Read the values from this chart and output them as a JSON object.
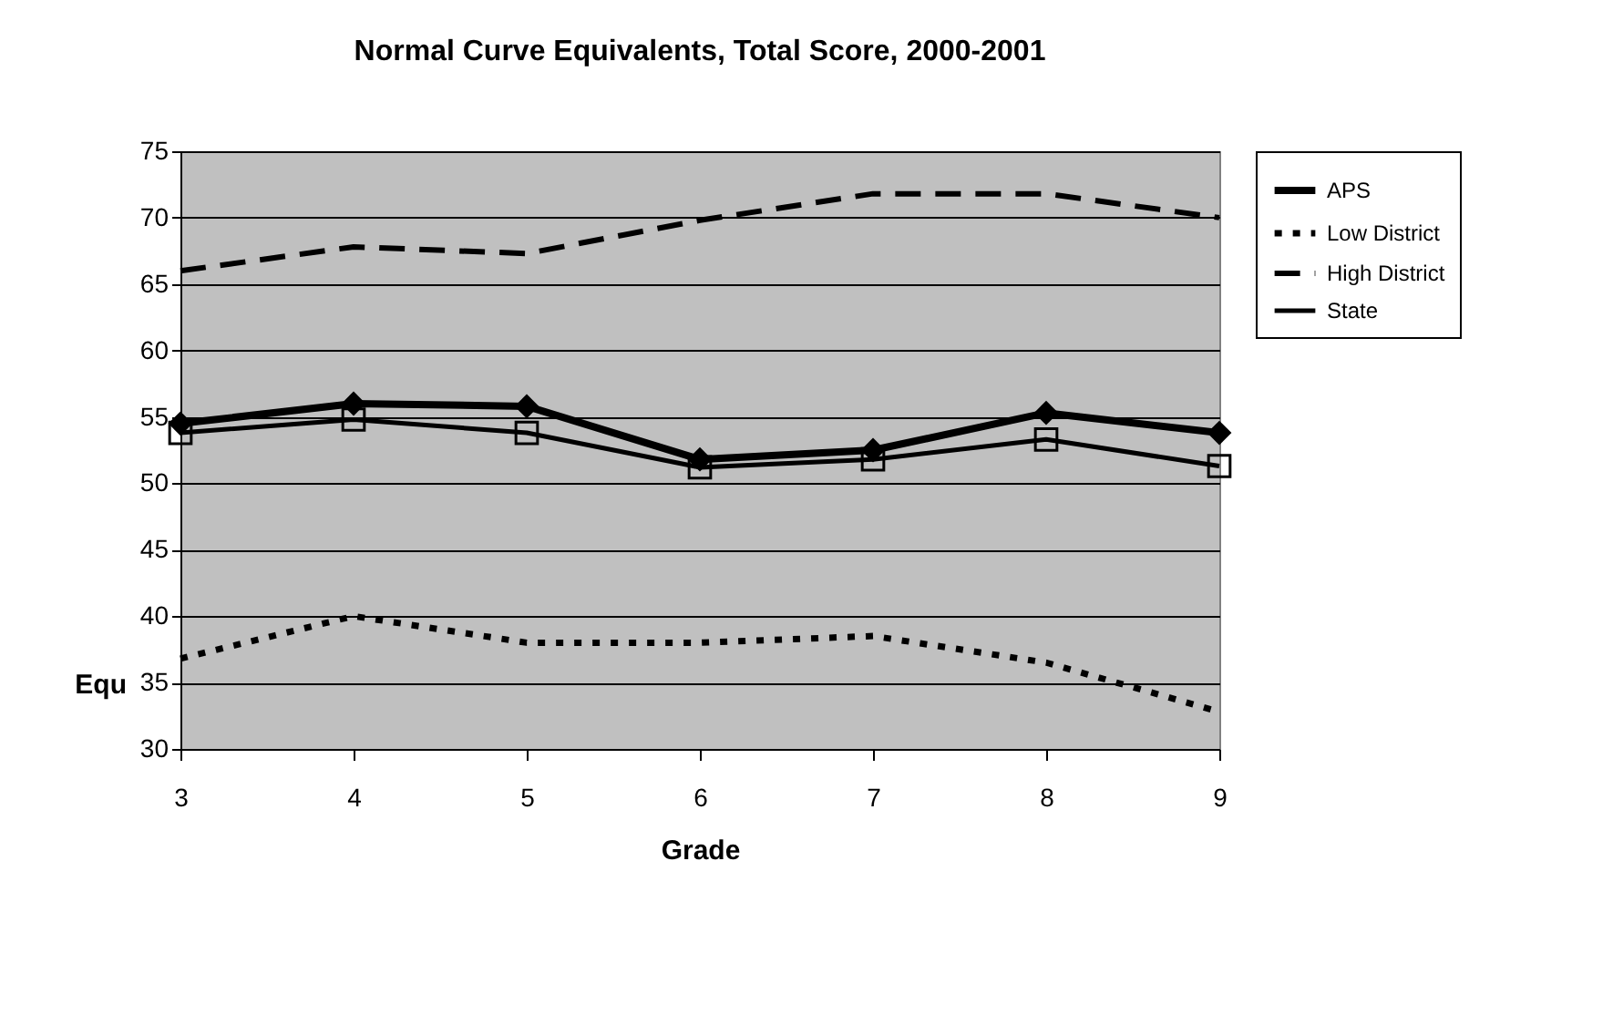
{
  "chart_data": {
    "type": "line",
    "title": "Normal Curve Equivalents, Total Score, 2000-2001",
    "xlabel": "Grade",
    "ylabel": "Equ",
    "categories": [
      "3",
      "4",
      "5",
      "6",
      "7",
      "8",
      "9"
    ],
    "series": [
      {
        "name": "APS",
        "color": "#000000",
        "marker": "diamond",
        "line_style": "solid",
        "values": [
          54.5,
          56,
          55.8,
          51.8,
          52.5,
          55.3,
          53.8
        ]
      },
      {
        "name": "Low District",
        "color": "#000000",
        "marker": "none",
        "line_style": "dotted",
        "values": [
          36.8,
          40,
          38,
          38,
          38.5,
          36.5,
          32.8
        ]
      },
      {
        "name": "High District",
        "color": "#000000",
        "marker": "none",
        "line_style": "dashed",
        "values": [
          66,
          67.8,
          67.3,
          69.8,
          71.8,
          71.8,
          70
        ]
      },
      {
        "name": "State",
        "color": "#000000",
        "marker": "square",
        "line_style": "solid",
        "values": [
          53.8,
          54.8,
          53.8,
          51.2,
          51.8,
          53.3,
          51.3
        ]
      }
    ],
    "ylim": [
      30,
      75
    ],
    "yticks": [
      30,
      35,
      40,
      45,
      50,
      55,
      60,
      65,
      70,
      75
    ],
    "grid": "y",
    "legend": "right"
  }
}
